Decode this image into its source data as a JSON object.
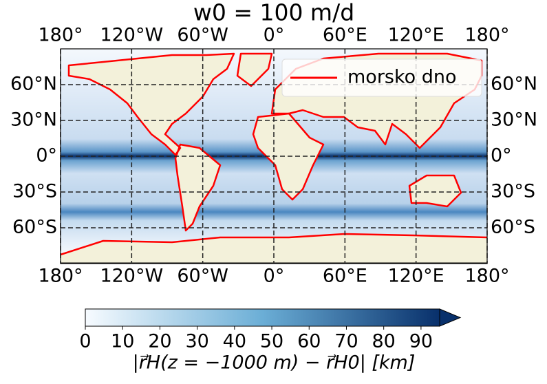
{
  "chart_data": {
    "type": "map",
    "title": "w0 = 100 m/d",
    "xlim": [
      -180,
      180
    ],
    "ylim": [
      -90,
      90
    ],
    "xticks": [
      {
        "value": -180,
        "label": "180°"
      },
      {
        "value": -120,
        "label": "120°W"
      },
      {
        "value": -60,
        "label": "60°W"
      },
      {
        "value": 0,
        "label": "0°"
      },
      {
        "value": 60,
        "label": "60°E"
      },
      {
        "value": 120,
        "label": "120°E"
      },
      {
        "value": 180,
        "label": "180°"
      }
    ],
    "yticks": [
      {
        "value": 60,
        "label": "60°N"
      },
      {
        "value": 30,
        "label": "30°N"
      },
      {
        "value": 0,
        "label": "0°"
      },
      {
        "value": -30,
        "label": "30°S"
      },
      {
        "value": -60,
        "label": "60°S"
      }
    ],
    "grid": true,
    "legend": {
      "position": "upper right",
      "entries": [
        {
          "name": "morsko dno",
          "color": "#ff0000"
        }
      ]
    },
    "colorbar": {
      "lim": [
        0,
        95
      ],
      "ticks": [
        0,
        10,
        20,
        30,
        40,
        50,
        60,
        70,
        80,
        90
      ],
      "extend": "max",
      "colors": [
        "#f7fbff",
        "#08306b"
      ],
      "label": "|r⃗H(z = −1000 m) − r⃗H0| [km]"
    }
  }
}
